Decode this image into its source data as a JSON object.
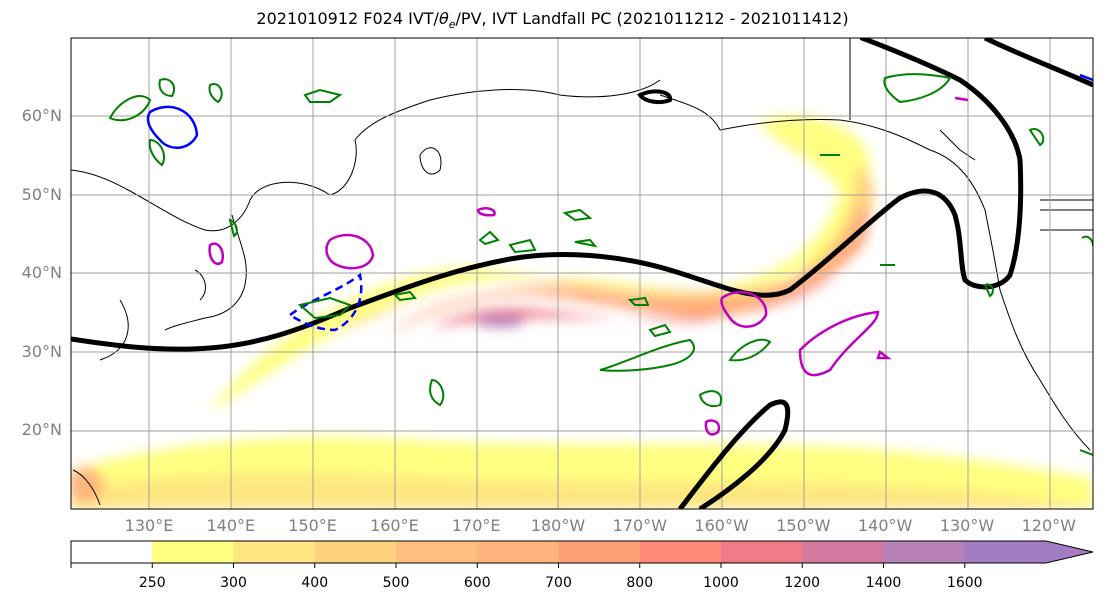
{
  "title_main": "2021010912 F024 IVT/",
  "title_theta": "θ",
  "title_sub": "e",
  "title_rest": "/PV, IVT Landfall PC (2021011212 - 2021011412)",
  "lat_labels": [
    "60°N",
    "50°N",
    "40°N",
    "30°N",
    "20°N"
  ],
  "lat_values": [
    60,
    50,
    40,
    30,
    20
  ],
  "lon_labels": [
    "130°E",
    "140°E",
    "150°E",
    "160°E",
    "170°E",
    "180°W",
    "170°W",
    "160°W",
    "150°W",
    "140°W",
    "130°W",
    "120°W"
  ],
  "lon_values": [
    130,
    140,
    150,
    160,
    170,
    180,
    190,
    200,
    210,
    220,
    230,
    240
  ],
  "colorbar": {
    "levels": [
      "250",
      "300",
      "400",
      "500",
      "600",
      "700",
      "800",
      "1000",
      "1200",
      "1400",
      "1600"
    ],
    "colors": [
      "#ffffff",
      "#ffff80",
      "#ffe680",
      "#ffd280",
      "#ffbf80",
      "#ffb47c",
      "#ff9f78",
      "#ff8a7a",
      "#f07a88",
      "#d47aa0",
      "#b680b8",
      "#a47cc4"
    ]
  },
  "colors": {
    "jet_contour": "#000000",
    "theta_contour": "#008000",
    "pv_positive": "#c000c0",
    "pv_negative": "#0000ff",
    "grid": "#a0a0a0",
    "label_gray": "#808080"
  }
}
